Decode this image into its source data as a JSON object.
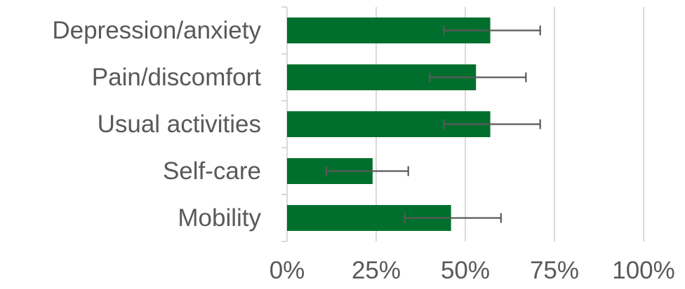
{
  "chart_data": {
    "type": "bar",
    "orientation": "horizontal",
    "categories": [
      "Depression/anxiety",
      "Pain/discomfort",
      "Usual activities",
      "Self-care",
      "Mobility"
    ],
    "values": [
      57,
      53,
      57,
      24,
      46
    ],
    "error_bars": [
      {
        "low": 44,
        "high": 71
      },
      {
        "low": 40,
        "high": 67
      },
      {
        "low": 44,
        "high": 71
      },
      {
        "low": 11,
        "high": 34
      },
      {
        "low": 33,
        "high": 60
      }
    ],
    "xlim": [
      0,
      100
    ],
    "x_ticks": [
      "0%",
      "25%",
      "50%",
      "75%",
      "100%"
    ],
    "x_tick_values": [
      0,
      25,
      50,
      75,
      100
    ],
    "grid": "vertical",
    "bar_color": "#006f2d",
    "error_color": "#595959",
    "gridline_color": "#d9d9d9",
    "label_color": "#595959",
    "title": "",
    "xlabel": "",
    "ylabel": ""
  }
}
